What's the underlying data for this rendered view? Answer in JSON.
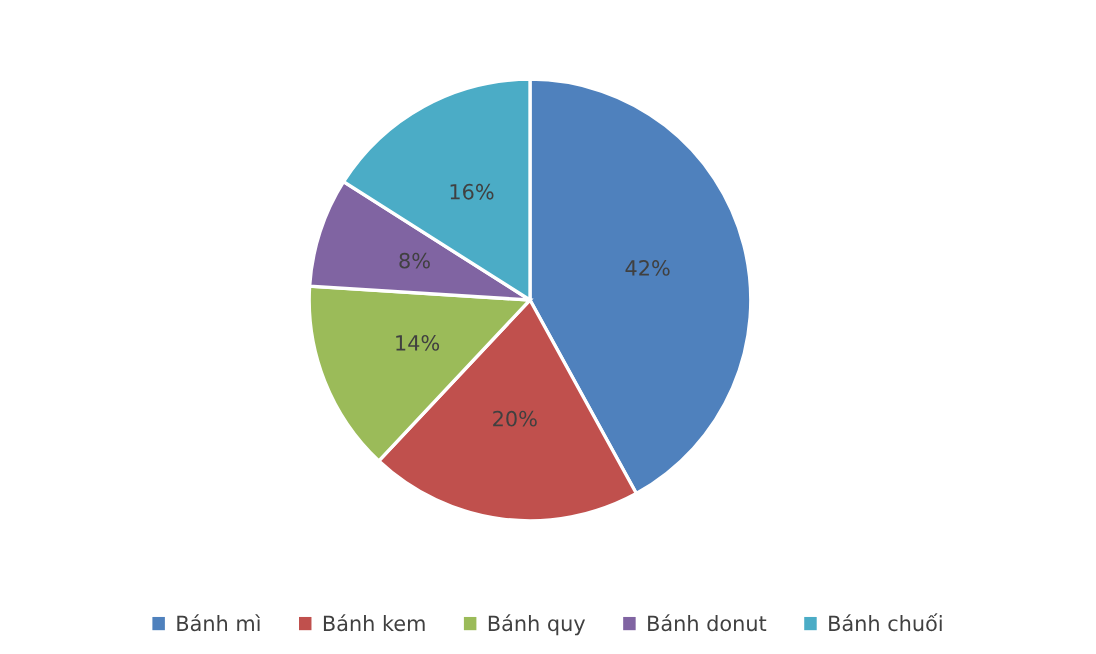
{
  "chart_data": {
    "type": "pie",
    "categories": [
      "Bánh mì",
      "Bánh kem",
      "Bánh quy",
      "Bánh donut",
      "Bánh chuối"
    ],
    "values": [
      42,
      20,
      14,
      8,
      16
    ],
    "colors": [
      "#4f81bd",
      "#c0504d",
      "#9bbb59",
      "#8064a2",
      "#4bacc6"
    ],
    "value_labels": [
      "42%",
      "20%",
      "14%",
      "8%",
      "16%"
    ],
    "legend": "bottom"
  }
}
